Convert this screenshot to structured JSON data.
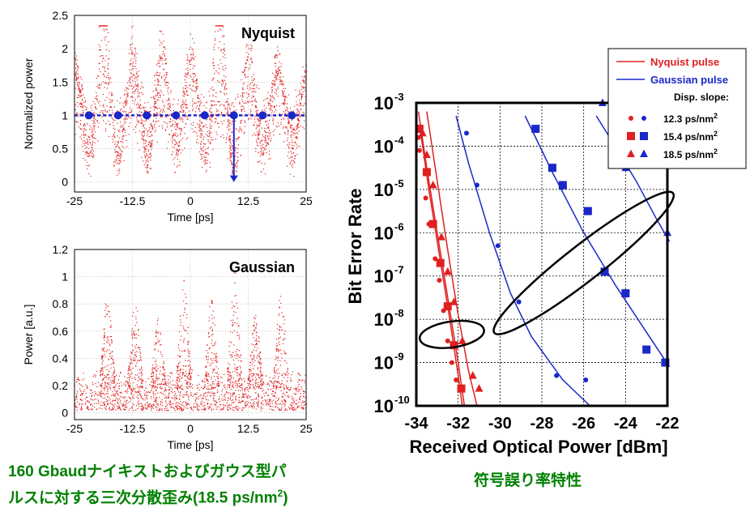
{
  "captions": {
    "left_line1": "160 Gbaudナイキストおよびガウス型パ",
    "left_line2_main": "ルスに対する三次分散歪み(18.5 ps/nm",
    "left_line2_sup": "2",
    "left_line2_end": ")",
    "right": "符号誤り率特性"
  },
  "colors": {
    "nyquist": "#e02020",
    "gaussian": "#1a28c8",
    "annotation": "#000000",
    "caption": "#008000"
  },
  "chart_data": [
    {
      "type": "scatter",
      "title": "Nyquist",
      "xlabel": "Time [ps]",
      "ylabel": "Normalized power",
      "xlim": [
        -25,
        25
      ],
      "ylim": [
        -0.15,
        2.5
      ],
      "xticks": [
        -25,
        -12.5,
        0,
        12.5,
        25
      ],
      "xtick_labels": [
        "-25",
        "-12.5",
        "0",
        "12.5",
        "25"
      ],
      "yticks": [
        0,
        0.5,
        1,
        1.5,
        2,
        2.5
      ],
      "ytick_labels": [
        "0",
        "0.5",
        "1",
        "1.5",
        "2",
        "2.5"
      ],
      "grid": true,
      "reference_level": 1,
      "sampling_points_x": [
        -21.9,
        -15.6,
        -9.4,
        -3.1,
        3.1,
        9.4,
        15.6,
        21.9
      ],
      "arrow": {
        "x": 9.4,
        "from_y": 1,
        "to_y": 0
      },
      "peak_envelope": [
        {
          "x": -22.5,
          "y": 1.25
        },
        {
          "x": -19.0,
          "y": 2.3
        },
        {
          "x": -15.5,
          "y": 1.35
        },
        {
          "x": -12.5,
          "y": 1.45
        },
        {
          "x": -9.4,
          "y": 1.25
        },
        {
          "x": -6.2,
          "y": 1.5
        },
        {
          "x": -2.5,
          "y": 1.6
        },
        {
          "x": 1.5,
          "y": 1.45
        },
        {
          "x": 6.0,
          "y": 2.3
        },
        {
          "x": 12.5,
          "y": 1.5
        },
        {
          "x": 16.0,
          "y": 1.55
        },
        {
          "x": 21.5,
          "y": 1.6
        }
      ],
      "note": "scattered eye-diagram samples"
    },
    {
      "type": "scatter",
      "title": "Gaussian",
      "xlabel": "Time [ps]",
      "ylabel": "Power [a.u.]",
      "xlim": [
        -25,
        25
      ],
      "ylim": [
        -0.05,
        1.2
      ],
      "xticks": [
        -25,
        -12.5,
        0,
        12.5,
        25
      ],
      "xtick_labels": [
        "-25",
        "-12.5",
        "0",
        "12.5",
        "25"
      ],
      "yticks": [
        0,
        0.2,
        0.4,
        0.6,
        0.8,
        1,
        1.2
      ],
      "ytick_labels": [
        "0",
        "0.2",
        "0.4",
        "0.6",
        "0.8",
        "1",
        "1.2"
      ],
      "grid": true,
      "peak_envelope": [
        {
          "x": -18.0,
          "y": 0.9
        },
        {
          "x": -12.0,
          "y": 0.85
        },
        {
          "x": -7.0,
          "y": 0.7
        },
        {
          "x": -1.5,
          "y": 1.0
        },
        {
          "x": 4.5,
          "y": 0.85
        },
        {
          "x": 9.5,
          "y": 1.05
        },
        {
          "x": 14.0,
          "y": 0.75
        },
        {
          "x": 19.5,
          "y": 0.92
        }
      ],
      "note": "scattered eye-diagram samples"
    },
    {
      "type": "line",
      "xlabel": "Received Optical Power [dBm]",
      "ylabel": "Bit Error Rate",
      "xlim": [
        -34,
        -22
      ],
      "ylim_exponent": [
        -10,
        -3
      ],
      "y_scale": "log",
      "xticks": [
        -34,
        -32,
        -30,
        -28,
        -26,
        -24,
        -22
      ],
      "xtick_labels": [
        "-34",
        "-32",
        "-30",
        "-28",
        "-26",
        "-24",
        "-22"
      ],
      "ytick_exponents": [
        -3,
        -4,
        -5,
        -6,
        -7,
        -8,
        -9,
        -10
      ],
      "ytick_labels": [
        "10",
        "10",
        "10",
        "10",
        "10",
        "10",
        "10",
        "10"
      ],
      "ytick_label_exponents": [
        "-3",
        "-4",
        "-5",
        "-6",
        "-7",
        "-8",
        "-9",
        "-10"
      ],
      "grid": "dashed",
      "legend": {
        "placement": "top-right",
        "line_entries": [
          "Nyquist pulse",
          "Gaussian pulse"
        ],
        "heading": "Disp. slope:",
        "marker_entries": [
          {
            "marker": "circle",
            "label": "12.3 ps/nm",
            "sup": "2"
          },
          {
            "marker": "square",
            "label": "15.4 ps/nm",
            "sup": "2"
          },
          {
            "marker": "triangle",
            "label": "18.5 ps/nm",
            "sup": "2"
          }
        ]
      },
      "series": [
        {
          "pulse": "Nyquist",
          "marker": "circle",
          "line": [
            [
              -33.9,
              -3.2
            ],
            [
              -33.5,
              -4.5
            ],
            [
              -33,
              -6.0
            ],
            [
              -32.5,
              -7.5
            ],
            [
              -32,
              -9.0
            ],
            [
              -31.7,
              -10
            ]
          ],
          "points": [
            [
              -33.9,
              -3.8
            ],
            [
              -33.85,
              -4.1
            ],
            [
              -33.55,
              -5.2
            ],
            [
              -33.4,
              -5.8
            ],
            [
              -33.1,
              -6.6
            ],
            [
              -32.9,
              -7.1
            ],
            [
              -32.7,
              -7.8
            ],
            [
              -32.5,
              -8.5
            ],
            [
              -32.3,
              -9.0
            ],
            [
              -32.1,
              -9.4
            ]
          ]
        },
        {
          "pulse": "Nyquist",
          "marker": "square",
          "line": [
            [
              -33.85,
              -3.5
            ],
            [
              -33.4,
              -5.0
            ],
            [
              -32.9,
              -6.5
            ],
            [
              -32.4,
              -8.0
            ],
            [
              -32.0,
              -9.3
            ],
            [
              -31.8,
              -10
            ]
          ],
          "points": [
            [
              -33.85,
              -3.6
            ],
            [
              -33.5,
              -4.6
            ],
            [
              -33.2,
              -5.8
            ],
            [
              -32.85,
              -6.7
            ],
            [
              -32.5,
              -7.7
            ],
            [
              -32.2,
              -8.6
            ],
            [
              -31.85,
              -9.6
            ]
          ]
        },
        {
          "pulse": "Nyquist",
          "marker": "triangle",
          "line": [
            [
              -33.5,
              -3.2
            ],
            [
              -33,
              -4.8
            ],
            [
              -32.5,
              -6.4
            ],
            [
              -32,
              -7.9
            ],
            [
              -31.5,
              -9.2
            ],
            [
              -31.1,
              -10
            ]
          ],
          "points": [
            [
              -33.7,
              -3.7
            ],
            [
              -33.5,
              -4.2
            ],
            [
              -33.2,
              -4.9
            ],
            [
              -32.8,
              -6.1
            ],
            [
              -32.5,
              -6.9
            ],
            [
              -32.2,
              -7.6
            ],
            [
              -31.8,
              -8.5
            ],
            [
              -31.3,
              -9.3
            ],
            [
              -31.0,
              -9.6
            ]
          ]
        },
        {
          "pulse": "Gaussian",
          "marker": "circle",
          "line": [
            [
              -32.1,
              -3.3
            ],
            [
              -31.5,
              -4.4
            ],
            [
              -30.5,
              -6.0
            ],
            [
              -29.5,
              -7.4
            ],
            [
              -28.5,
              -8.4
            ],
            [
              -27,
              -9.4
            ],
            [
              -25.7,
              -10
            ]
          ],
          "points": [
            [
              -31.6,
              -3.7
            ],
            [
              -31.1,
              -4.9
            ],
            [
              -30.1,
              -6.3
            ],
            [
              -29.1,
              -7.6
            ],
            [
              -27.3,
              -9.3
            ],
            [
              -25.9,
              -9.4
            ]
          ]
        },
        {
          "pulse": "Gaussian",
          "marker": "square",
          "line": [
            [
              -28.8,
              -3.3
            ],
            [
              -27.5,
              -4.6
            ],
            [
              -26,
              -6.0
            ],
            [
              -24.5,
              -7.2
            ],
            [
              -23,
              -8.3
            ],
            [
              -21.9,
              -9.1
            ]
          ],
          "points": [
            [
              -28.3,
              -3.6
            ],
            [
              -27.5,
              -4.5
            ],
            [
              -27,
              -4.9
            ],
            [
              -25.8,
              -5.5
            ],
            [
              -25,
              -6.9
            ],
            [
              -24,
              -7.4
            ],
            [
              -23,
              -8.7
            ],
            [
              -22.1,
              -9.0
            ]
          ]
        },
        {
          "pulse": "Gaussian",
          "marker": "triangle",
          "line": [
            [
              -25.4,
              -3.3
            ],
            [
              -24.5,
              -4.0
            ],
            [
              -23.5,
              -4.8
            ],
            [
              -22.5,
              -5.7
            ],
            [
              -21.9,
              -6.2
            ]
          ],
          "points": [
            [
              -25.1,
              -3.0
            ],
            [
              -24.0,
              -4.5
            ],
            [
              -22.0,
              -6.0
            ]
          ]
        }
      ]
    }
  ]
}
